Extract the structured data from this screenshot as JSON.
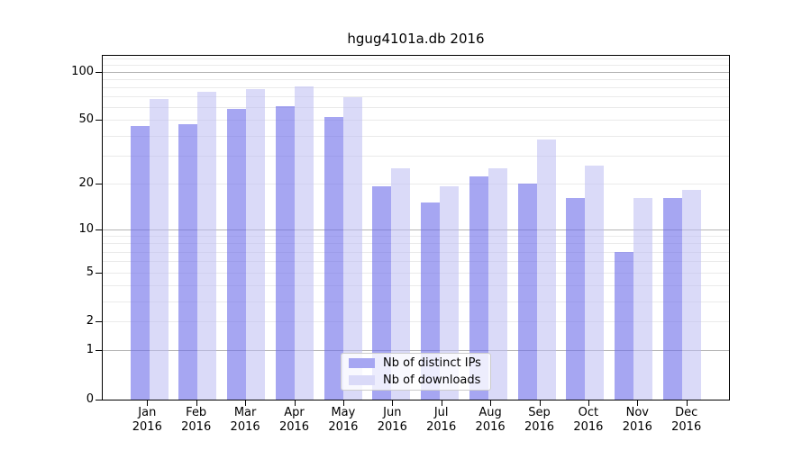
{
  "chart_data": {
    "type": "bar",
    "title": "hgug4101a.db 2016",
    "categories": [
      "Jan 2016",
      "Feb 2016",
      "Mar 2016",
      "Apr 2016",
      "May 2016",
      "Jun 2016",
      "Jul 2016",
      "Aug 2016",
      "Sep 2016",
      "Oct 2016",
      "Nov 2016",
      "Dec 2016"
    ],
    "series": [
      {
        "name": "Nb of distinct IPs",
        "color": "#a6a6f2",
        "values": [
          46,
          47,
          59,
          61,
          52,
          19,
          15,
          22,
          20,
          16,
          7,
          16
        ]
      },
      {
        "name": "Nb of downloads",
        "color": "#dadaf8",
        "values": [
          68,
          75,
          78,
          81,
          69,
          25,
          19,
          25,
          38,
          26,
          16,
          18
        ]
      }
    ],
    "yscale": "log1p",
    "ylim": [
      0,
      125
    ],
    "ytick_values": [
      0,
      1,
      2,
      5,
      10,
      20,
      50,
      100
    ],
    "ytick_labels": [
      "0",
      "1",
      "2",
      "5",
      "10",
      "20",
      "50",
      "100"
    ],
    "major_gridline_values": [
      1,
      10,
      100
    ],
    "minor_gridline_values": [
      2,
      3,
      4,
      5,
      6,
      7,
      8,
      9,
      20,
      30,
      40,
      50,
      60,
      70,
      80,
      90,
      110,
      120
    ],
    "grid": true,
    "legend_position": "lower center"
  },
  "colors": {
    "background": "#ffffff",
    "axis": "#000000",
    "major_grid": "#b4b4b4",
    "minor_grid": "#eaeaea",
    "bar_distinct_ips": "#a6a6f2",
    "bar_downloads": "#dadaf8"
  }
}
